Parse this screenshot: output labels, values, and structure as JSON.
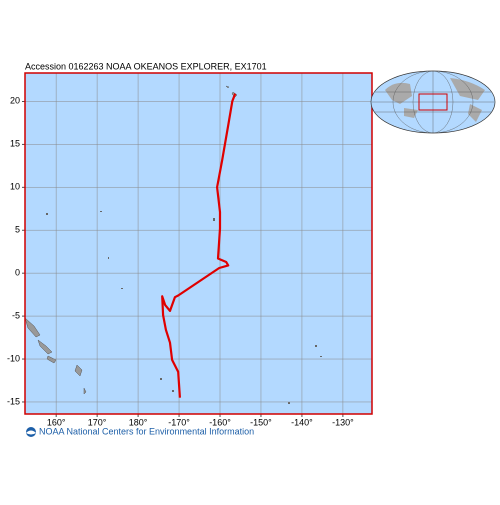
{
  "map": {
    "title": "Accession 0162263 NOAA OKEANOS EXPLORER, EX1701",
    "footer": "NOAA National Centers for Environmental Information",
    "xlim": [
      152.4,
      -122.9
    ],
    "ylim": [
      -16.4,
      23.3
    ],
    "xticks": [
      {
        "value": 160,
        "label": "160°"
      },
      {
        "value": 170,
        "label": "170°"
      },
      {
        "value": 180,
        "label": "180°"
      },
      {
        "value": -170,
        "label": "-170°"
      },
      {
        "value": -160,
        "label": "-160°"
      },
      {
        "value": -150,
        "label": "-150°"
      },
      {
        "value": -140,
        "label": "-140°"
      },
      {
        "value": -130,
        "label": "-130°"
      }
    ],
    "yticks": [
      20,
      15,
      10,
      5,
      0,
      -5,
      -10,
      -15
    ],
    "track": {
      "color": "#e00000",
      "lon": [
        -156.3,
        -157,
        -158,
        -159.5,
        -160.7,
        -160,
        -160,
        -160.5,
        -158.5,
        -158,
        -160.2,
        -170.2,
        -171,
        -172.2,
        -173.4,
        -174.1,
        -173.9,
        -173.2,
        -172.2,
        -171.7,
        -170.2,
        -169.8
      ],
      "lat": [
        20.9,
        20,
        17.2,
        13.1,
        10,
        7.1,
        5.2,
        1.7,
        1.3,
        0.9,
        0.6,
        -2.6,
        -2.8,
        -4.4,
        -3.7,
        -2.7,
        -4.9,
        -6.6,
        -8.1,
        -10.1,
        -11.5,
        -14.5
      ]
    }
  }
}
